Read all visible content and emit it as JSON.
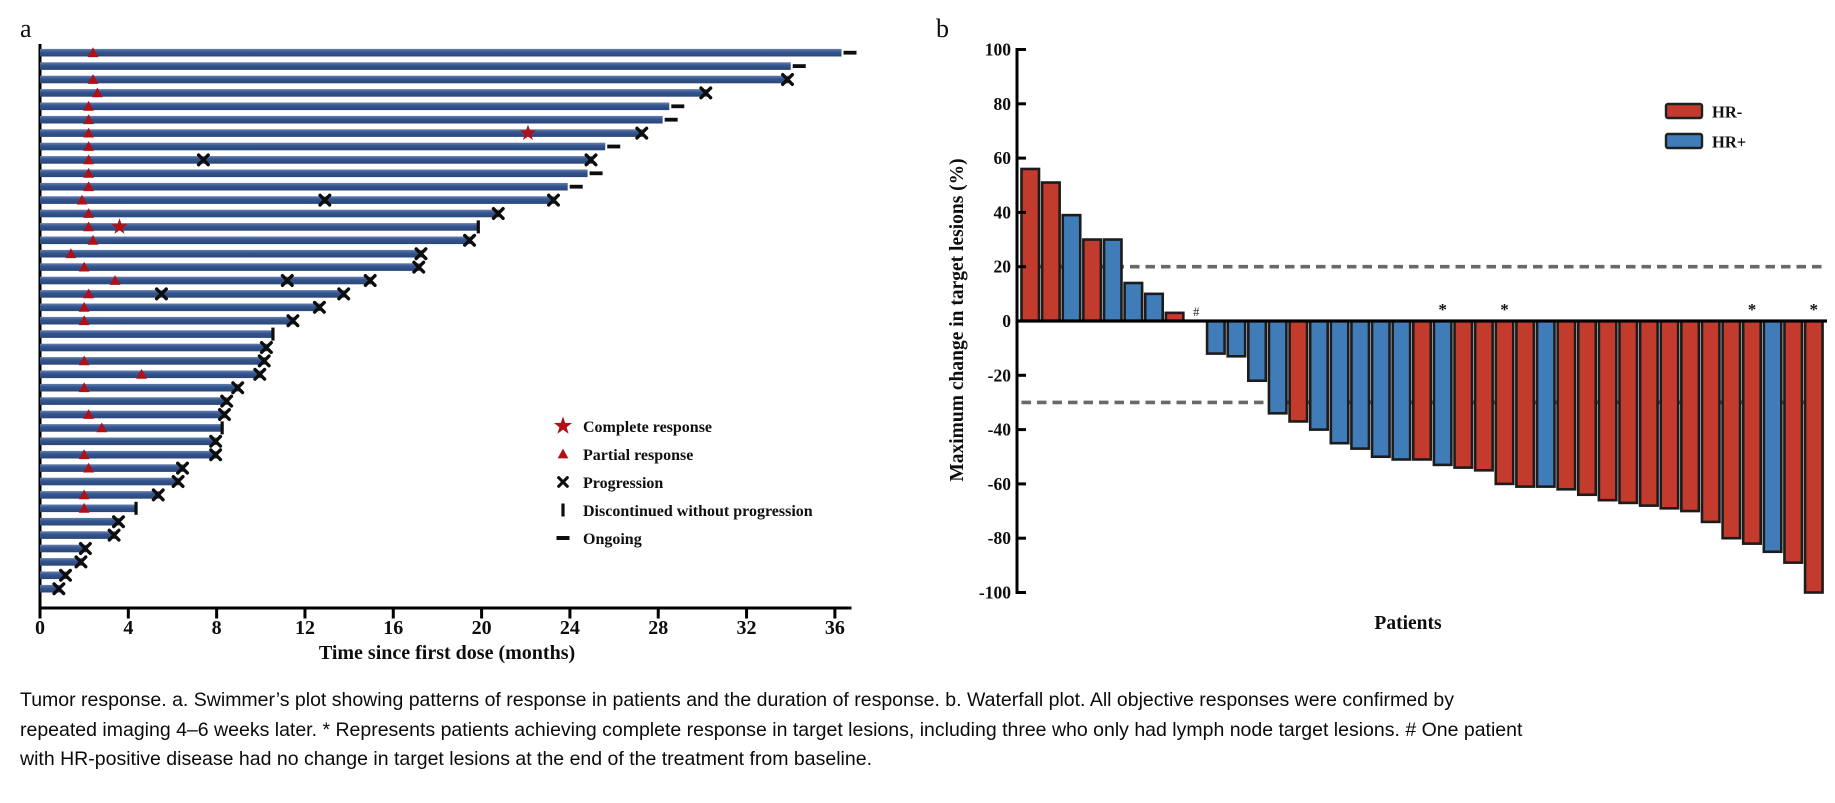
{
  "figure": {
    "panel_a_label": "a",
    "panel_b_label": "b"
  },
  "caption": {
    "text": "Tumor response. a. Swimmer’s plot showing patterns of response in patients and the duration of response. b. Waterfall plot. All objective responses were confirmed by repeated imaging 4–6 weeks later. * Represents patients achieving complete response in target lesions, including three who only had lymph node target lesions. # One patient with HR-positive disease had no change in target lesions at the end of the treatment from baseline."
  },
  "chart_data": [
    {
      "type": "bar",
      "variant": "swimmer",
      "orientation": "horizontal",
      "xlabel": "Time since first dose (months)",
      "xticks": [
        0,
        4,
        8,
        12,
        16,
        20,
        24,
        28,
        32,
        36
      ],
      "xlim": [
        0,
        37
      ],
      "grid": false,
      "bar_color": "#33548e",
      "marker_red": "#b01116",
      "marker_black": "#0d0d0d",
      "legend_position": "center-right",
      "legend": [
        {
          "marker": "star",
          "label": "Complete response",
          "color": "#b01116"
        },
        {
          "marker": "triangle",
          "label": "Partial response",
          "color": "#b01116"
        },
        {
          "marker": "x",
          "label": "Progression",
          "color": "#0d0d0d"
        },
        {
          "marker": "vbar",
          "label": "Discontinued without progression",
          "color": "#0d0d0d"
        },
        {
          "marker": "dash",
          "label": "Ongoing",
          "color": "#0d0d0d"
        }
      ],
      "patients": [
        {
          "months": 36.3,
          "pr": 2.4,
          "end": "ongoing"
        },
        {
          "months": 34.0,
          "end": "ongoing"
        },
        {
          "months": 33.9,
          "pr": 2.4,
          "end": "x"
        },
        {
          "months": 30.2,
          "pr": 2.6,
          "end": "x"
        },
        {
          "months": 28.5,
          "pr": 2.2,
          "end": "ongoing"
        },
        {
          "months": 28.2,
          "pr": 2.2,
          "end": "ongoing"
        },
        {
          "months": 27.3,
          "pr": 2.2,
          "cr": 22.1,
          "end": "x"
        },
        {
          "months": 25.6,
          "pr": 2.2,
          "end": "ongoing"
        },
        {
          "months": 25.0,
          "pr": 2.2,
          "mid_x": [
            7.4
          ],
          "end": "x"
        },
        {
          "months": 24.8,
          "pr": 2.2,
          "end": "ongoing"
        },
        {
          "months": 23.9,
          "pr": 2.2,
          "end": "ongoing"
        },
        {
          "months": 23.3,
          "pr": 1.9,
          "mid_x": [
            12.9
          ],
          "end": "x"
        },
        {
          "months": 20.8,
          "pr": 2.2,
          "end": "x"
        },
        {
          "months": 19.8,
          "pr": 2.2,
          "cr": 3.6,
          "end": "discontinued"
        },
        {
          "months": 19.5,
          "pr": 2.4,
          "end": "x"
        },
        {
          "months": 17.3,
          "pr": 1.4,
          "end": "x"
        },
        {
          "months": 17.2,
          "pr": 2.0,
          "end": "x"
        },
        {
          "months": 15.0,
          "pr": 3.4,
          "mid_x": [
            11.2
          ],
          "end": "x"
        },
        {
          "months": 13.8,
          "pr": 2.2,
          "mid_x": [
            5.5
          ],
          "end": "x"
        },
        {
          "months": 12.7,
          "pr": 2.0,
          "end": "x"
        },
        {
          "months": 11.5,
          "pr": 2.0,
          "end": "x"
        },
        {
          "months": 10.5,
          "end": "discontinued"
        },
        {
          "months": 10.3,
          "end": "x"
        },
        {
          "months": 10.2,
          "pr": 2.0,
          "end": "x"
        },
        {
          "months": 10.0,
          "pr": 4.6,
          "end": "x"
        },
        {
          "months": 9.0,
          "pr": 2.0,
          "end": "x"
        },
        {
          "months": 8.5,
          "end": "x"
        },
        {
          "months": 8.4,
          "pr": 2.2,
          "end": "x"
        },
        {
          "months": 8.2,
          "pr": 2.8,
          "end": "discontinued"
        },
        {
          "months": 8.0,
          "end": "x"
        },
        {
          "months": 8.0,
          "pr": 2.0,
          "end": "x"
        },
        {
          "months": 6.5,
          "pr": 2.2,
          "end": "x"
        },
        {
          "months": 6.3,
          "end": "x"
        },
        {
          "months": 5.4,
          "pr": 2.0,
          "end": "x"
        },
        {
          "months": 4.3,
          "pr": 2.0,
          "end": "discontinued"
        },
        {
          "months": 3.6,
          "end": "x"
        },
        {
          "months": 3.4,
          "end": "x"
        },
        {
          "months": 2.1,
          "end": "x"
        },
        {
          "months": 1.9,
          "end": "x"
        },
        {
          "months": 1.2,
          "end": "x"
        },
        {
          "months": 0.9,
          "end": "x"
        }
      ]
    },
    {
      "type": "bar",
      "variant": "waterfall",
      "xlabel": "Patients",
      "ylabel": "Maximum change in target lesions (%)",
      "ylim": [
        -100,
        100
      ],
      "yticks": [
        100,
        80,
        60,
        40,
        20,
        0,
        -20,
        -40,
        -60,
        -80,
        -100
      ],
      "grid": false,
      "reference_lines": [
        20,
        -30
      ],
      "reference_line_color": "#696969",
      "legend_position": "top-right",
      "legend": [
        {
          "label": "HR-",
          "color": "#c23b2c"
        },
        {
          "label": "HR+",
          "color": "#3f7cb8"
        }
      ],
      "bars": [
        {
          "value": 56,
          "group": "HR-"
        },
        {
          "value": 51,
          "group": "HR-"
        },
        {
          "value": 39,
          "group": "HR+"
        },
        {
          "value": 30,
          "group": "HR-"
        },
        {
          "value": 30,
          "group": "HR+"
        },
        {
          "value": 14,
          "group": "HR+"
        },
        {
          "value": 10,
          "group": "HR+"
        },
        {
          "value": 3,
          "group": "HR-"
        },
        {
          "value": 0,
          "group": "HR+",
          "mark": "#"
        },
        {
          "value": -12,
          "group": "HR+"
        },
        {
          "value": -13,
          "group": "HR+"
        },
        {
          "value": -22,
          "group": "HR+"
        },
        {
          "value": -34,
          "group": "HR+"
        },
        {
          "value": -37,
          "group": "HR-"
        },
        {
          "value": -40,
          "group": "HR+"
        },
        {
          "value": -45,
          "group": "HR+"
        },
        {
          "value": -47,
          "group": "HR+"
        },
        {
          "value": -50,
          "group": "HR+"
        },
        {
          "value": -51,
          "group": "HR+"
        },
        {
          "value": -51,
          "group": "HR-"
        },
        {
          "value": -53,
          "group": "HR+",
          "mark": "*"
        },
        {
          "value": -54,
          "group": "HR-"
        },
        {
          "value": -55,
          "group": "HR-"
        },
        {
          "value": -60,
          "group": "HR-",
          "mark": "*"
        },
        {
          "value": -61,
          "group": "HR-"
        },
        {
          "value": -61,
          "group": "HR+"
        },
        {
          "value": -62,
          "group": "HR-"
        },
        {
          "value": -64,
          "group": "HR-"
        },
        {
          "value": -66,
          "group": "HR-"
        },
        {
          "value": -67,
          "group": "HR-"
        },
        {
          "value": -68,
          "group": "HR-"
        },
        {
          "value": -69,
          "group": "HR-"
        },
        {
          "value": -70,
          "group": "HR-"
        },
        {
          "value": -74,
          "group": "HR-"
        },
        {
          "value": -80,
          "group": "HR-"
        },
        {
          "value": -82,
          "group": "HR-",
          "mark": "*"
        },
        {
          "value": -85,
          "group": "HR+"
        },
        {
          "value": -89,
          "group": "HR-"
        },
        {
          "value": -100,
          "group": "HR-",
          "mark": "*"
        }
      ]
    }
  ]
}
